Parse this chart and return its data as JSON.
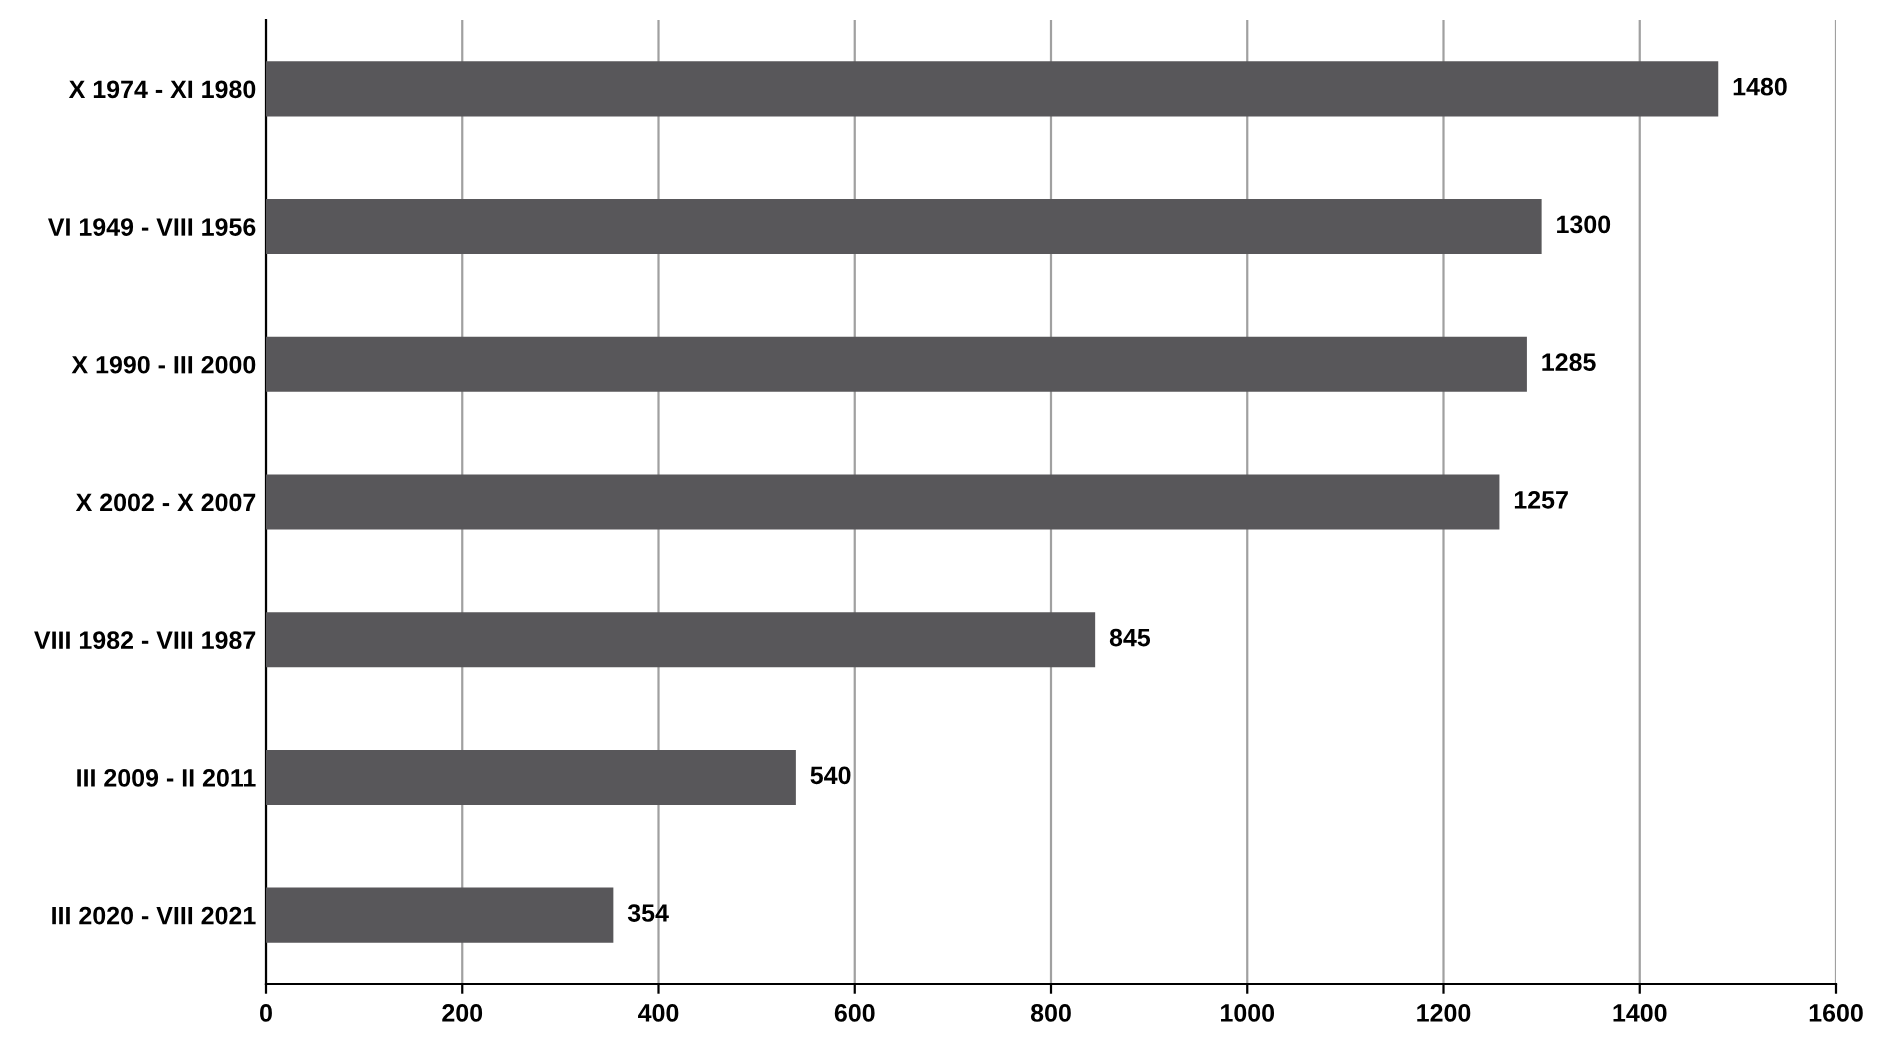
{
  "chart_data": {
    "type": "bar",
    "orientation": "horizontal",
    "categories": [
      "X 1974 - XI 1980",
      "VI 1949 - VIII 1956",
      "X 1990 - III 2000",
      "X 2002 - X 2007",
      "VIII 1982 - VIII 1987",
      "III 2009 - II 2011",
      "III 2020 - VIII 2021"
    ],
    "values": [
      1480,
      1300,
      1285,
      1257,
      845,
      540,
      354
    ],
    "color": "#58575a",
    "xlim": [
      0,
      1600
    ],
    "xticks": [
      0,
      200,
      400,
      600,
      800,
      1000,
      1200,
      1400,
      1600
    ],
    "grid": "x",
    "data_labels": true,
    "legend": false
  }
}
